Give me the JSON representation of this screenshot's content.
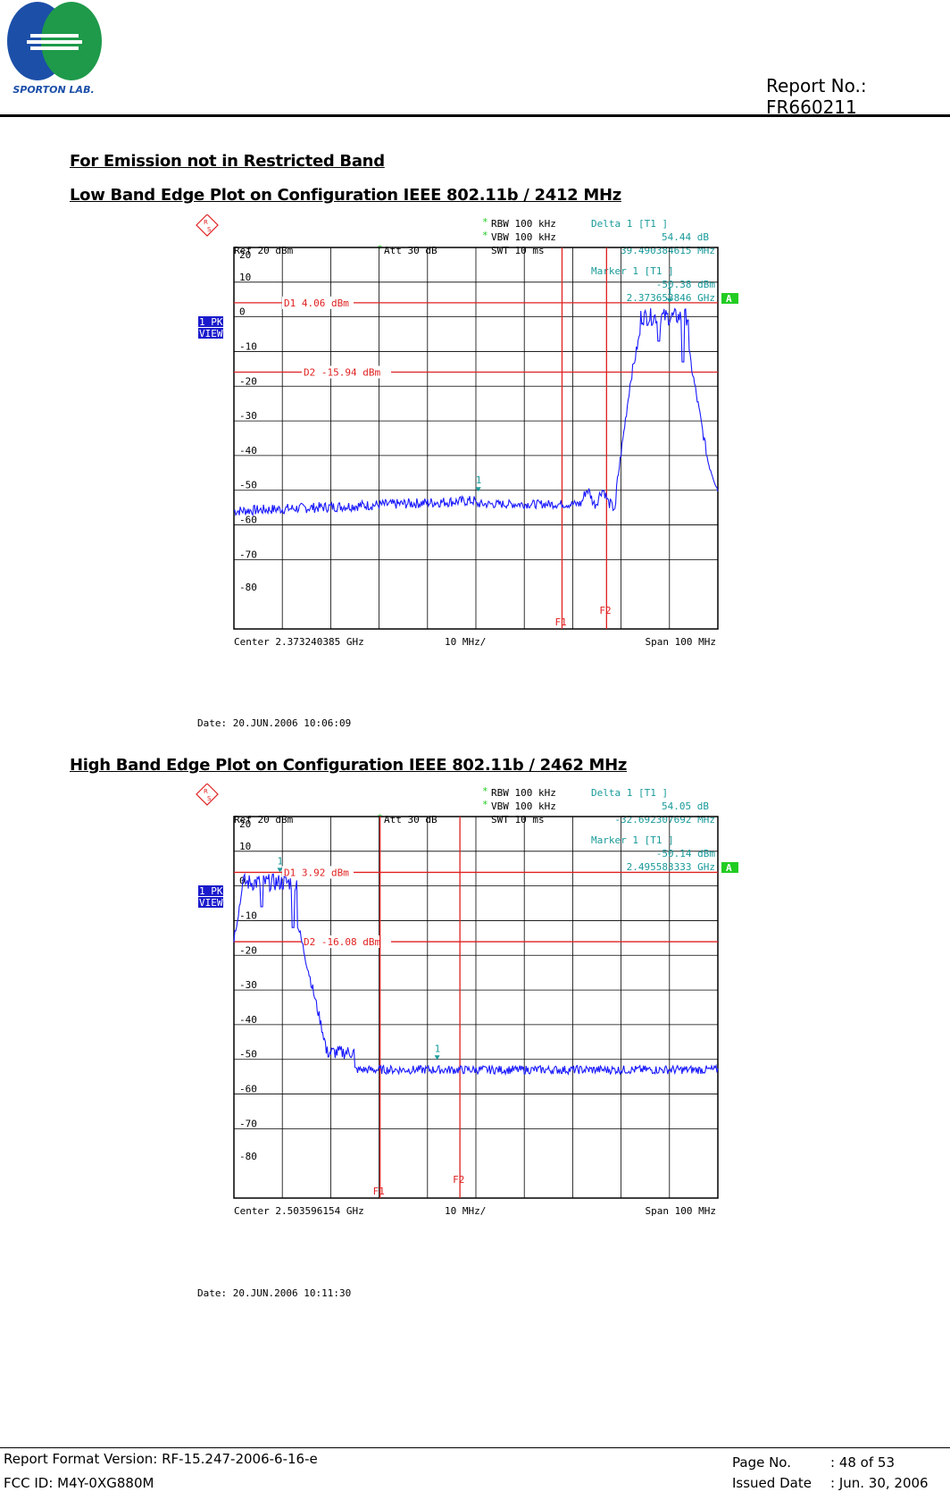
{
  "header": {
    "logo_text": "SPORTON LAB.",
    "report_no": "Report No.: FR660211"
  },
  "section_titles": {
    "emission": "For Emission not in Restricted Band",
    "low_band": "Low Band Edge Plot on Configuration IEEE 802.11b / 2412 MHz",
    "high_band": "High Band Edge Plot on Configuration IEEE 802.11b / 2462 MHz"
  },
  "plots": {
    "low": {
      "rbw": "RBW 100 kHz",
      "vbw": "VBW 100 kHz",
      "swt": "SWT 10 ms",
      "ref": "Ref  20 dBm",
      "att": "Att  30 dB",
      "delta_title": "Delta 1 [T1 ]",
      "delta_value": "54.44 dB",
      "delta_freq": "39.490384615 MHz",
      "marker_title": "Marker 1 [T1 ]",
      "marker_value": "-50.38 dBm",
      "marker_freq": "2.373653846 GHz",
      "d1_label": "D1 4.06 dBm",
      "d2_label": "D2 -15.94 dBm",
      "center": "Center  2.373240385 GHz",
      "div": "10 MHz/",
      "span": "Span  100 MHz",
      "badge_a": "A",
      "badge_pk": "1 PK",
      "badge_view": "VIEW",
      "f1": "F1",
      "f2": "F2",
      "marker_num": "1",
      "date": "Date: 20.JUN.2006  10:06:09"
    },
    "high": {
      "rbw": "RBW 100 kHz",
      "vbw": "VBW 100 kHz",
      "swt": "SWT 10 ms",
      "ref": "Ref  20 dBm",
      "att": "Att  30 dB",
      "delta_title": "Delta 1 [T1 ]",
      "delta_value": "54.05 dB",
      "delta_freq": "-32.692307692 MHz",
      "marker_title": "Marker 1 [T1 ]",
      "marker_value": "-50.14 dBm",
      "marker_freq": "2.495583333 GHz",
      "d1_label": "D1 3.92 dBm",
      "d2_label": "D2 -16.08 dBm",
      "center": "Center  2.503596154 GHz",
      "div": "10 MHz/",
      "span": "Span  100 MHz",
      "badge_a": "A",
      "badge_pk": "1 PK",
      "badge_view": "VIEW",
      "f1": "F1",
      "f2": "F2",
      "marker_num": "1",
      "date": "Date: 20.JUN.2006  10:11:30"
    }
  },
  "y_ticks": [
    "20",
    "10",
    "0",
    "-10",
    "-20",
    "-30",
    "-40",
    "-50",
    "-60",
    "-70",
    "-80"
  ],
  "footer": {
    "format_version": "Report Format Version: RF-15.247-2006-6-16-e",
    "fcc_id": "FCC ID: M4Y-0XG880M",
    "page_label": "Page No.",
    "page_value": ": 48 of 53",
    "issued_label": "Issued Date",
    "issued_value": ": Jun. 30, 2006"
  },
  "colors": {
    "trace": "#1a1aff",
    "display_line": "#e02020",
    "marker_text": "#1a9a9a",
    "grid": "#000000",
    "badge_a": "#22cc22",
    "badge_view": "#1a1acc"
  }
}
